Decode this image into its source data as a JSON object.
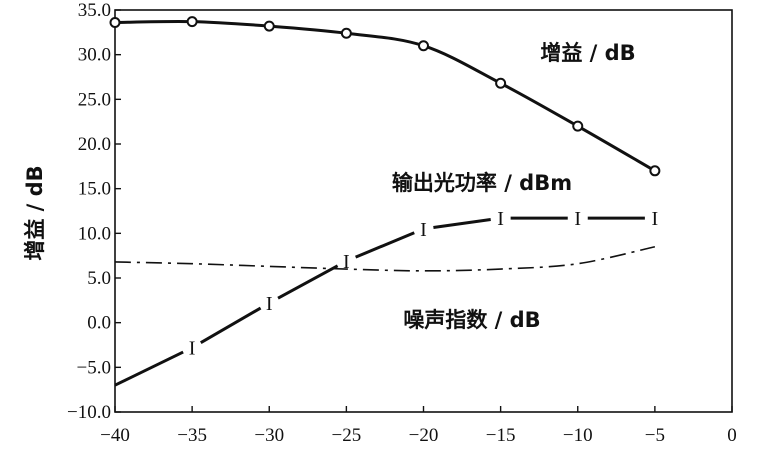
{
  "chart_data": {
    "type": "line",
    "ylabel": "增益 / dB",
    "xlim": [
      -40,
      0
    ],
    "ylim": [
      -10,
      35
    ],
    "x_ticks": [
      "−40",
      "−35",
      "−30",
      "−25",
      "−20",
      "−15",
      "−10",
      "−5",
      "0"
    ],
    "x_tick_values": [
      -40,
      -35,
      -30,
      -25,
      -20,
      -15,
      -10,
      -5,
      0
    ],
    "y_ticks": [
      "35.0",
      "30.0",
      "25.0",
      "20.0",
      "15.0",
      "10.0",
      "5.0",
      "0.0",
      "−5.0",
      "−10.0"
    ],
    "y_tick_values": [
      35,
      30,
      25,
      20,
      15,
      10,
      5,
      0,
      -5,
      -10
    ],
    "grid": false,
    "series": [
      {
        "name": "增益 / dB",
        "marker": "circle",
        "style": "solid",
        "x": [
          -40,
          -35,
          -30,
          -25,
          -20,
          -15,
          -10,
          -5
        ],
        "y": [
          33.6,
          33.7,
          33.2,
          32.4,
          31.0,
          26.8,
          22.0,
          17.0
        ]
      },
      {
        "name": "输出光功率 / dBm",
        "marker": "I",
        "style": "solid",
        "x": [
          -40,
          -35,
          -30,
          -25,
          -20,
          -15,
          -10,
          -5
        ],
        "y": [
          -7.0,
          -2.8,
          2.2,
          6.9,
          10.5,
          11.7,
          11.7,
          11.7
        ]
      },
      {
        "name": "噪声指数 / dB",
        "marker": "none",
        "style": "dashdot",
        "x": [
          -40,
          -35,
          -30,
          -25,
          -20,
          -15,
          -10,
          -5
        ],
        "y": [
          6.8,
          6.6,
          6.3,
          6.0,
          5.8,
          6.0,
          6.6,
          8.5
        ]
      }
    ]
  }
}
